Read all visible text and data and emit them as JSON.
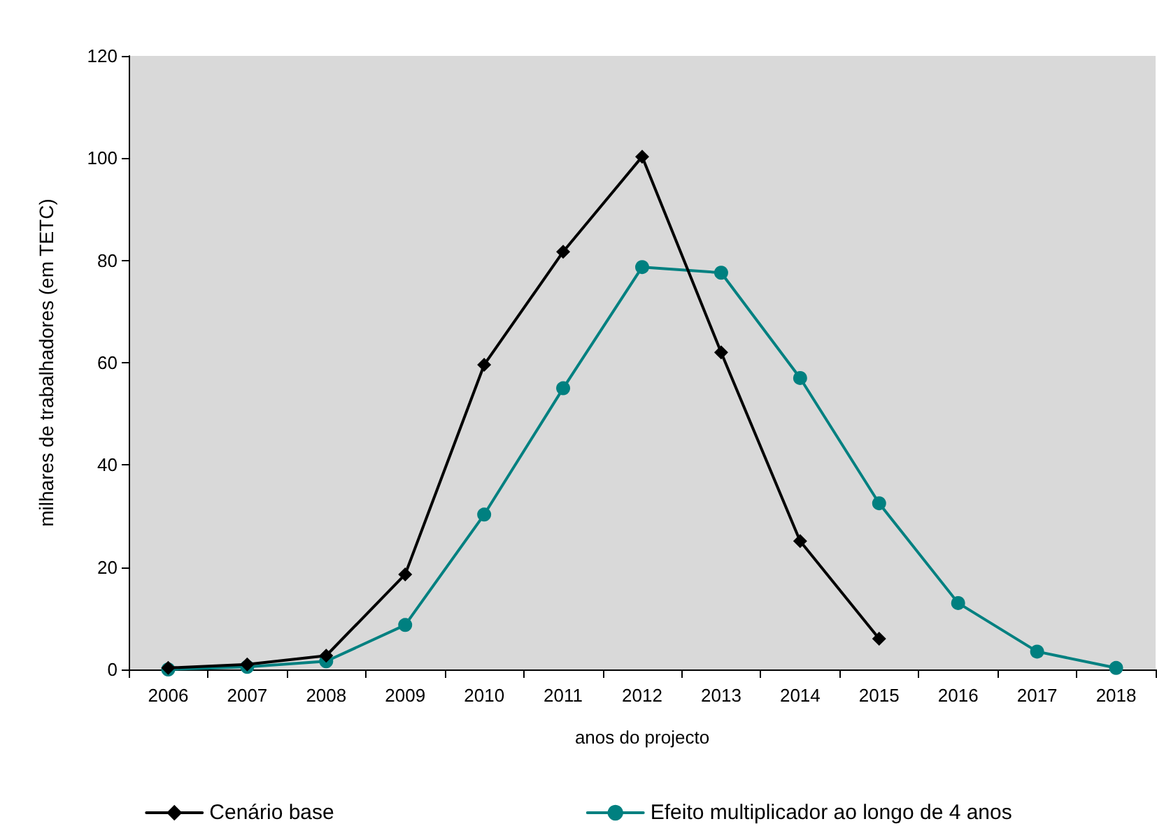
{
  "chart_data": {
    "type": "line",
    "xlabel": "anos do projecto",
    "ylabel": "milhares de trabalhadores (em TETC)",
    "categories": [
      "2006",
      "2007",
      "2008",
      "2009",
      "2010",
      "2011",
      "2012",
      "2013",
      "2014",
      "2015",
      "2016",
      "2017",
      "2018"
    ],
    "series": [
      {
        "name": "Cenário base",
        "color": "#000000",
        "marker": "diamond",
        "values": [
          0.3,
          1,
          2.7,
          18.6,
          59.6,
          81.7,
          100.3,
          62,
          25.1,
          6,
          null,
          null,
          null
        ]
      },
      {
        "name": "Efeito multiplicador ao longo de 4 anos",
        "color": "#008080",
        "marker": "circle",
        "values": [
          0,
          0.5,
          1.6,
          8.7,
          30.3,
          55,
          78.7,
          77.6,
          57,
          32.5,
          13,
          3.5,
          0.3
        ]
      }
    ],
    "ylim": [
      0,
      120
    ],
    "yticks": [
      0,
      20,
      40,
      60,
      80,
      100,
      120
    ],
    "grid": false,
    "legend": "bottom",
    "line_style": "solid"
  }
}
